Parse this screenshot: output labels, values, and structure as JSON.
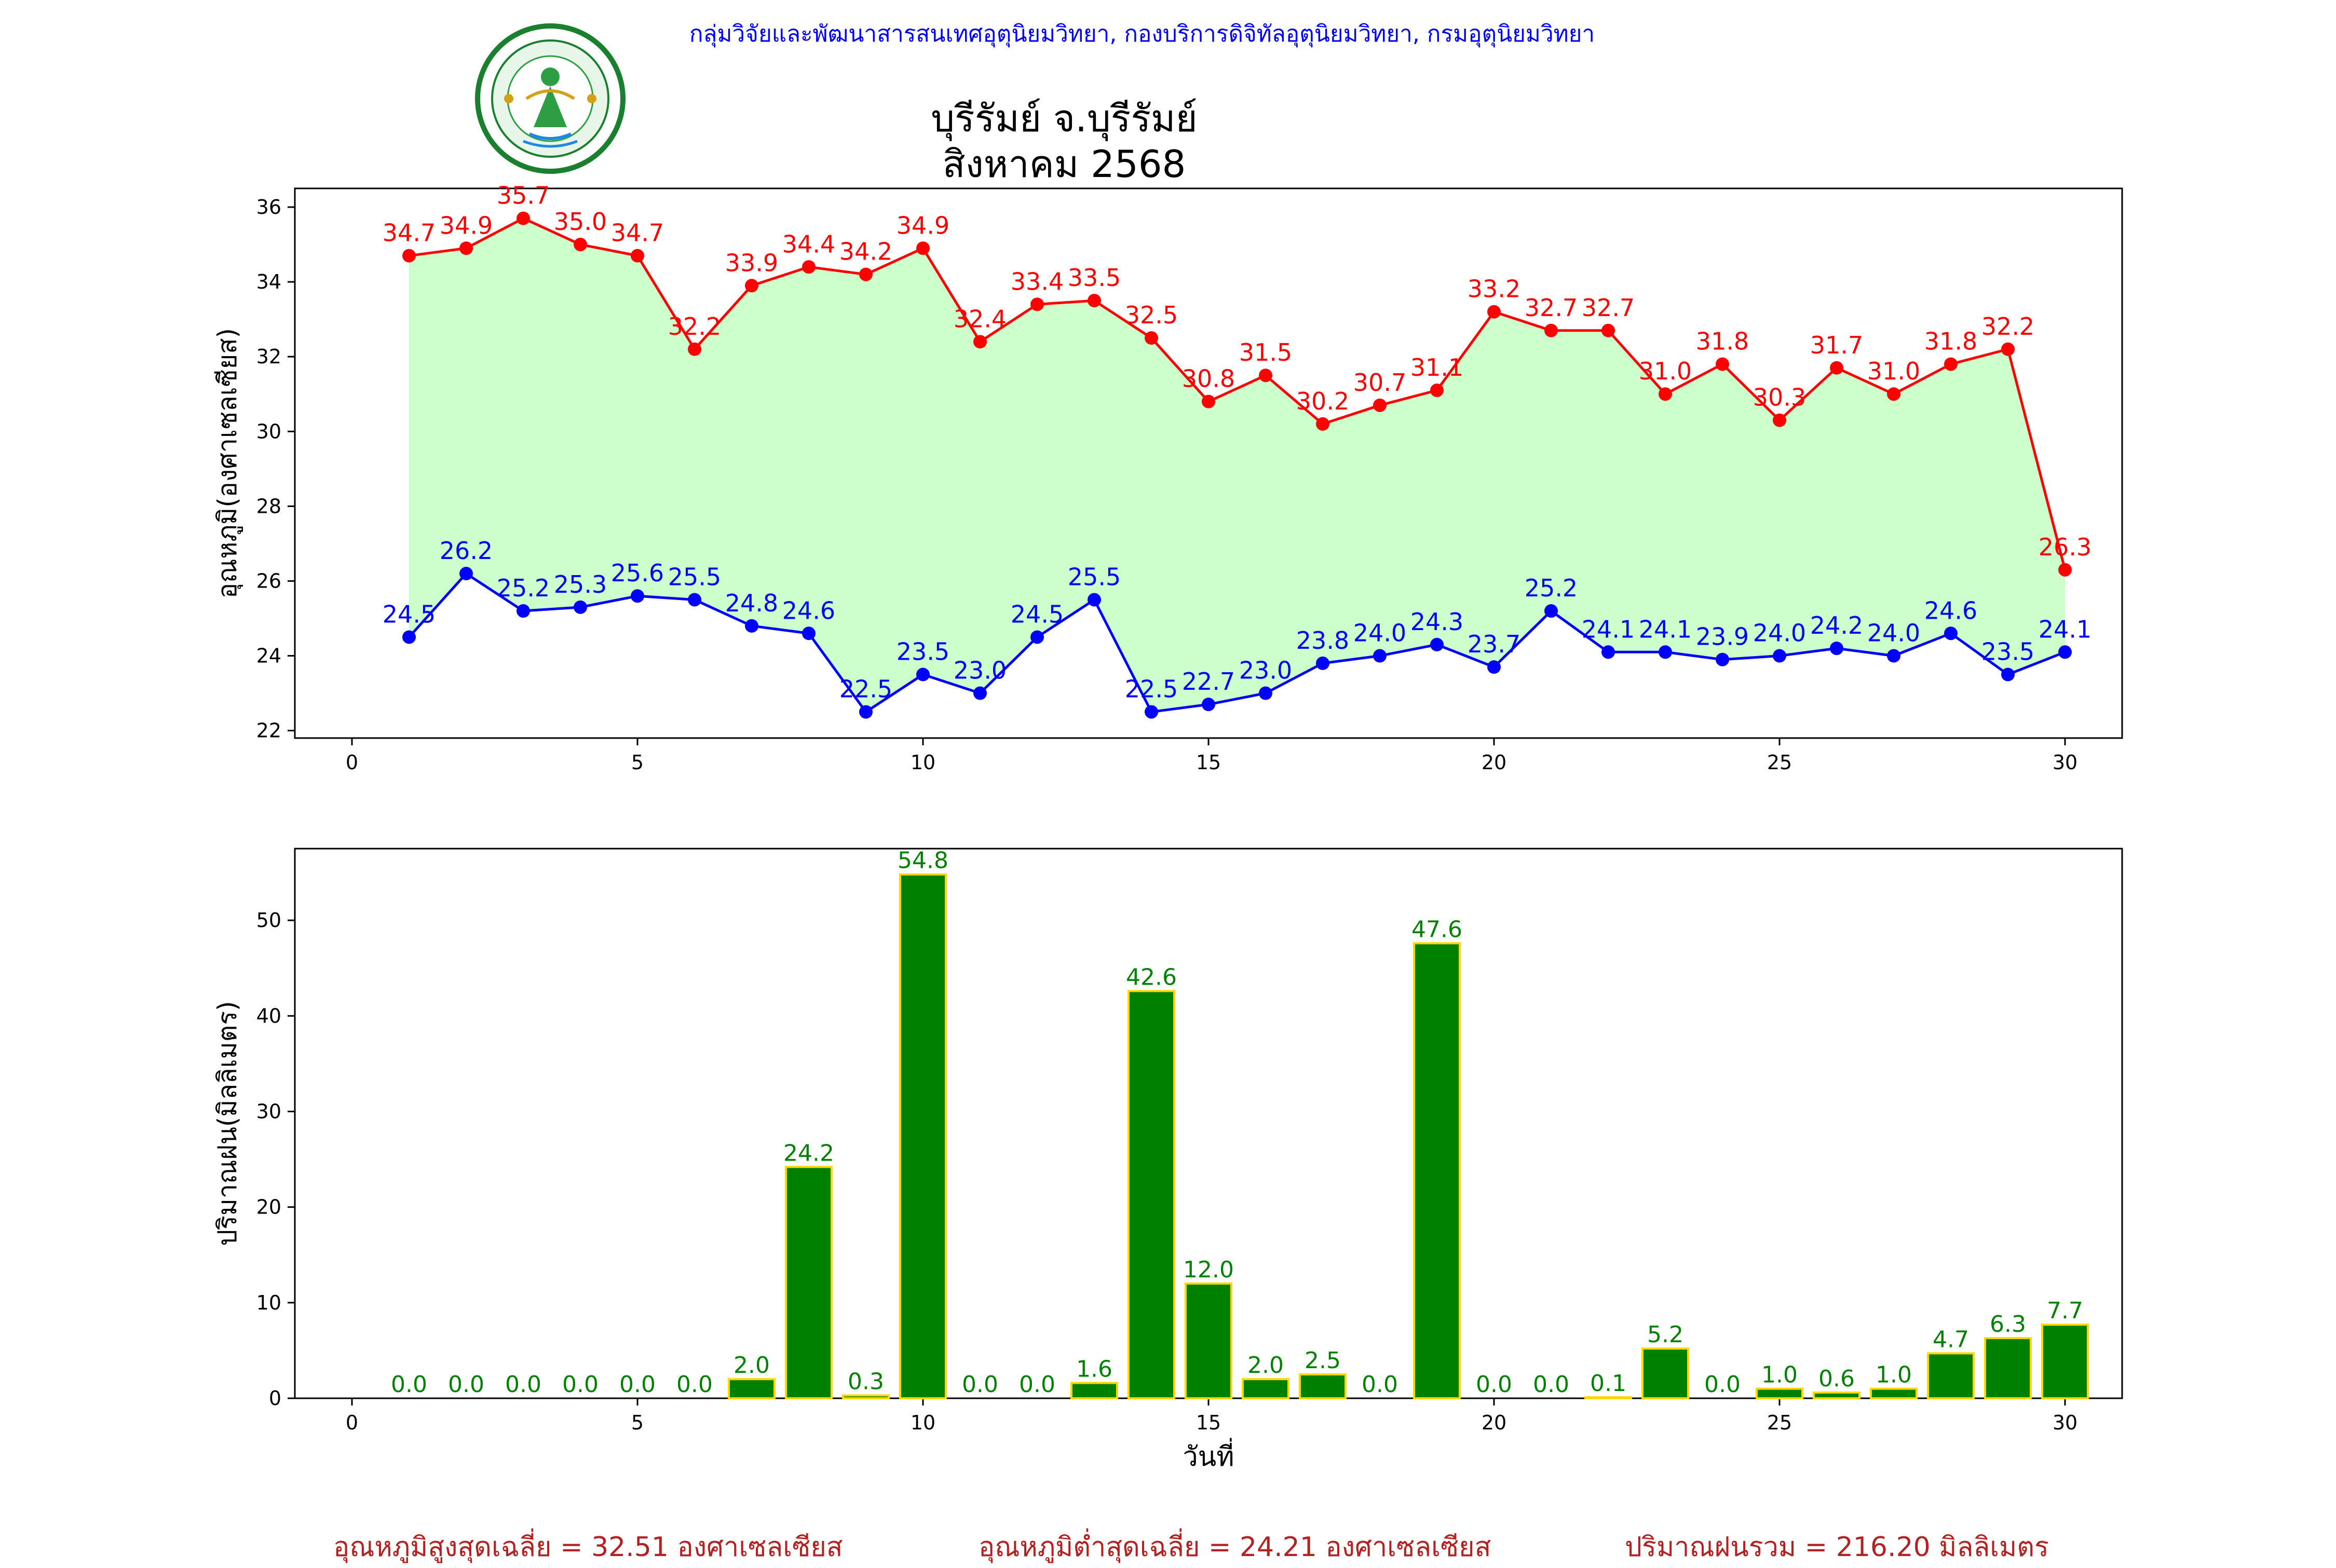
{
  "header": {
    "department_line": "กลุ่มวิจัยและพัฒนาสารสนเทศอุตุนิยมวิทยา, กองบริการดิจิทัลอุตุนิยมวิทยา, กรมอุตุนิยมวิทยา",
    "title_line1": "บุรีรัมย์ จ.บุรีรัมย์",
    "title_line2": "สิงหาคม 2568",
    "logo_text": "กรมอุตุนิยมวิทยา",
    "logo_text_en": "METEOROLOGICAL DEPARTMENT"
  },
  "colors": {
    "max_temp": "#ff0000",
    "min_temp": "#0000ff",
    "fill": "#ccffcc",
    "rain_bar": "#008000",
    "rain_edge": "#ffd700",
    "rain_label": "#008000",
    "footer": "#b22222",
    "header_blue": "#0000ff"
  },
  "chart_data": [
    {
      "type": "line",
      "ylabel": "อุณหภูมิ(องศาเซลเซียส)",
      "xlabel": "",
      "xlim": [
        -1,
        31
      ],
      "ylim": [
        21.8,
        36.5
      ],
      "xticks": [
        0,
        5,
        10,
        15,
        20,
        25,
        30
      ],
      "yticks": [
        22,
        24,
        26,
        28,
        30,
        32,
        34,
        36
      ],
      "grid": false,
      "x": [
        1,
        2,
        3,
        4,
        5,
        6,
        7,
        8,
        9,
        10,
        11,
        12,
        13,
        14,
        15,
        16,
        17,
        18,
        19,
        20,
        21,
        22,
        23,
        24,
        25,
        26,
        27,
        28,
        29,
        30
      ],
      "series": [
        {
          "key": "max",
          "values": [
            34.7,
            34.9,
            35.7,
            35.0,
            34.7,
            32.2,
            33.9,
            34.4,
            34.2,
            34.9,
            32.4,
            33.4,
            33.5,
            32.5,
            30.8,
            31.5,
            30.2,
            30.7,
            31.1,
            33.2,
            32.7,
            32.7,
            31.0,
            31.8,
            30.3,
            31.7,
            31.0,
            31.8,
            32.2,
            26.3
          ],
          "labels": [
            "34.7",
            "34.9",
            "35.7",
            "35.0",
            "34.7",
            "32.2",
            "33.9",
            "34.4",
            "34.2",
            "34.9",
            "32.4",
            "33.4",
            "33.5",
            "32.5",
            "30.8",
            "31.5",
            "30.2",
            "30.7",
            "31.1",
            "33.2",
            "32.7",
            "32.7",
            "31.0",
            "31.8",
            "30.3",
            "31.7",
            "31.0",
            "31.8",
            "32.2",
            "26.3"
          ]
        },
        {
          "key": "min",
          "values": [
            24.5,
            26.2,
            25.2,
            25.3,
            25.6,
            25.5,
            24.8,
            24.6,
            22.5,
            23.5,
            23.0,
            24.5,
            25.5,
            22.5,
            22.7,
            23.0,
            23.8,
            24.0,
            24.3,
            23.7,
            25.2,
            24.1,
            24.1,
            23.9,
            24.0,
            24.2,
            24.0,
            24.6,
            23.5,
            24.1
          ],
          "labels": [
            "24.5",
            "26.2",
            "25.2",
            "25.3",
            "25.6",
            "25.5",
            "24.8",
            "24.6",
            "22.5",
            "23.5",
            "23.0",
            "24.5",
            "25.5",
            "22.5",
            "22.7",
            "23.0",
            "23.8",
            "24.0",
            "24.3",
            "23.7",
            "25.2",
            "24.1",
            "24.1",
            "23.9",
            "24.0",
            "24.2",
            "24.0",
            "24.6",
            "23.5",
            "24.1"
          ]
        }
      ]
    },
    {
      "type": "bar",
      "ylabel": "ปริมาณฝน(มิลลิเมตร)",
      "xlabel": "วันที่",
      "xlim": [
        -1,
        31
      ],
      "ylim": [
        0,
        57.5
      ],
      "xticks": [
        0,
        5,
        10,
        15,
        20,
        25,
        30
      ],
      "yticks": [
        0,
        10,
        20,
        30,
        40,
        50
      ],
      "grid": false,
      "x": [
        1,
        2,
        3,
        4,
        5,
        6,
        7,
        8,
        9,
        10,
        11,
        12,
        13,
        14,
        15,
        16,
        17,
        18,
        19,
        20,
        21,
        22,
        23,
        24,
        25,
        26,
        27,
        28,
        29,
        30
      ],
      "values": [
        0.0,
        0.0,
        0.0,
        0.0,
        0.0,
        0.0,
        2.0,
        24.2,
        0.3,
        54.8,
        0.0,
        0.0,
        1.6,
        42.6,
        12.0,
        2.0,
        2.5,
        0.0,
        47.6,
        0.0,
        0.0,
        0.1,
        5.2,
        0.0,
        1.0,
        0.6,
        1.0,
        4.7,
        6.3,
        7.7
      ],
      "labels": [
        "0.0",
        "0.0",
        "0.0",
        "0.0",
        "0.0",
        "0.0",
        "2.0",
        "24.2",
        "0.3",
        "54.8",
        "0.0",
        "0.0",
        "1.6",
        "42.6",
        "12.0",
        "2.0",
        "2.5",
        "0.0",
        "47.6",
        "0.0",
        "0.0",
        "0.1",
        "5.2",
        "0.0",
        "1.0",
        "0.6",
        "1.0",
        "4.7",
        "6.3",
        "7.7"
      ]
    }
  ],
  "footer": {
    "avg_max": "อุณหภูมิสูงสุดเฉลี่ย = 32.51 องศาเซลเซียส",
    "avg_min": "อุณหภูมิต่ำสุดเฉลี่ย = 24.21 องศาเซลเซียส",
    "total_rain": "ปริมาณฝนรวม = 216.20 มิลลิเมตร"
  }
}
